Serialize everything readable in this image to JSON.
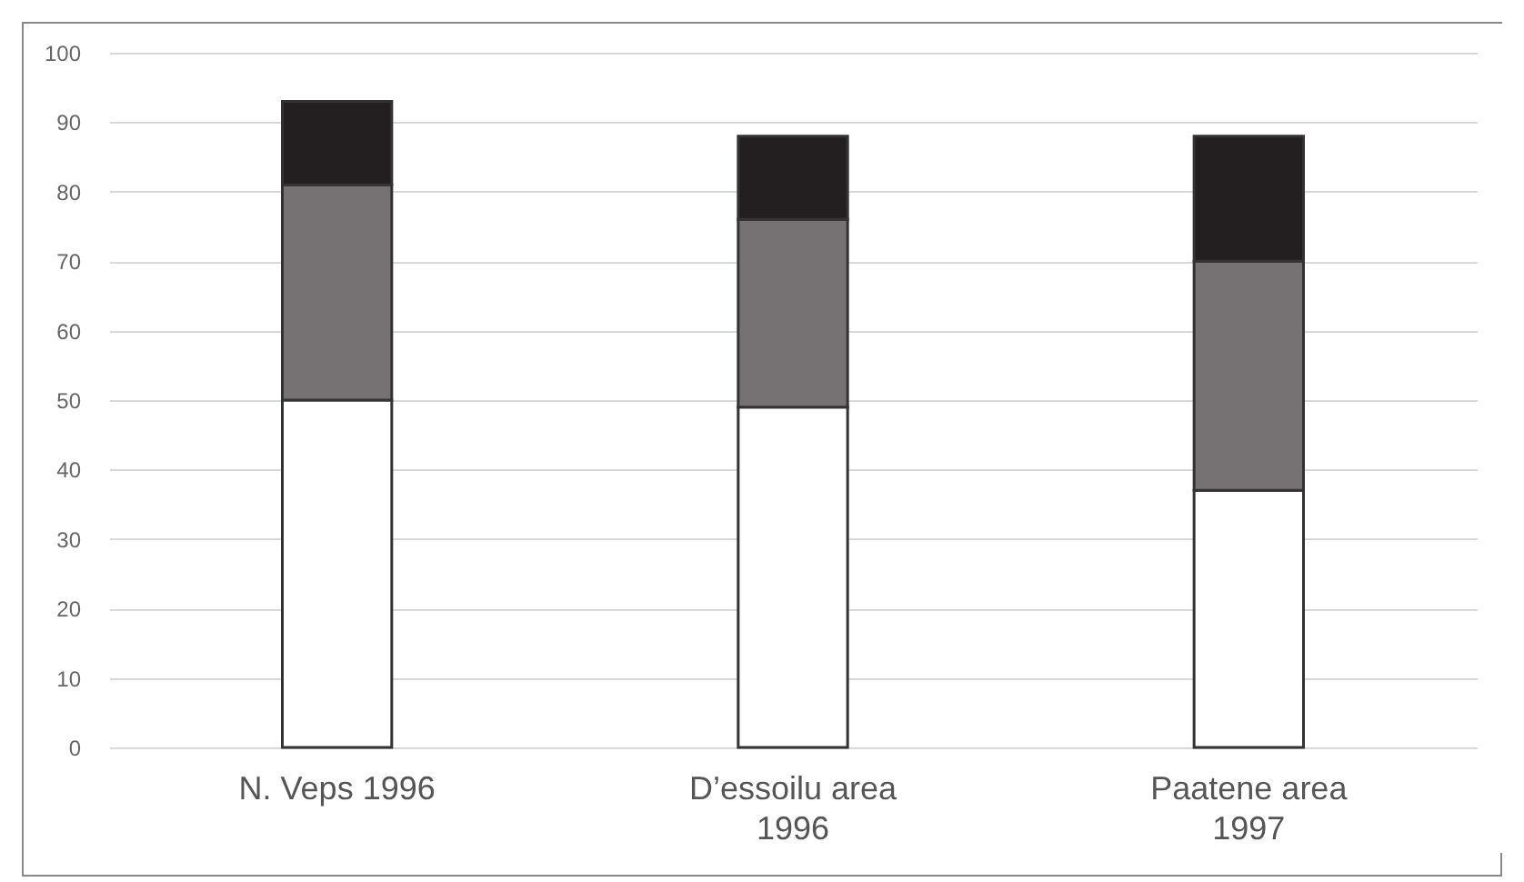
{
  "chart_data": {
    "type": "bar",
    "stacked": true,
    "categories": [
      "N. Veps 1996",
      "D’essoilu area 1996",
      "Paatene area 1997"
    ],
    "series": [
      {
        "color": "#ffffff",
        "values": [
          50,
          49,
          37
        ]
      },
      {
        "color": "#767273",
        "values": [
          31,
          27,
          33
        ]
      },
      {
        "color": "#231f20",
        "values": [
          12,
          12,
          18
        ]
      }
    ],
    "ylim": [
      0,
      100
    ],
    "yticks": [
      0,
      10,
      20,
      30,
      40,
      50,
      60,
      70,
      80,
      90,
      100
    ],
    "grid": "y",
    "legend": false
  }
}
